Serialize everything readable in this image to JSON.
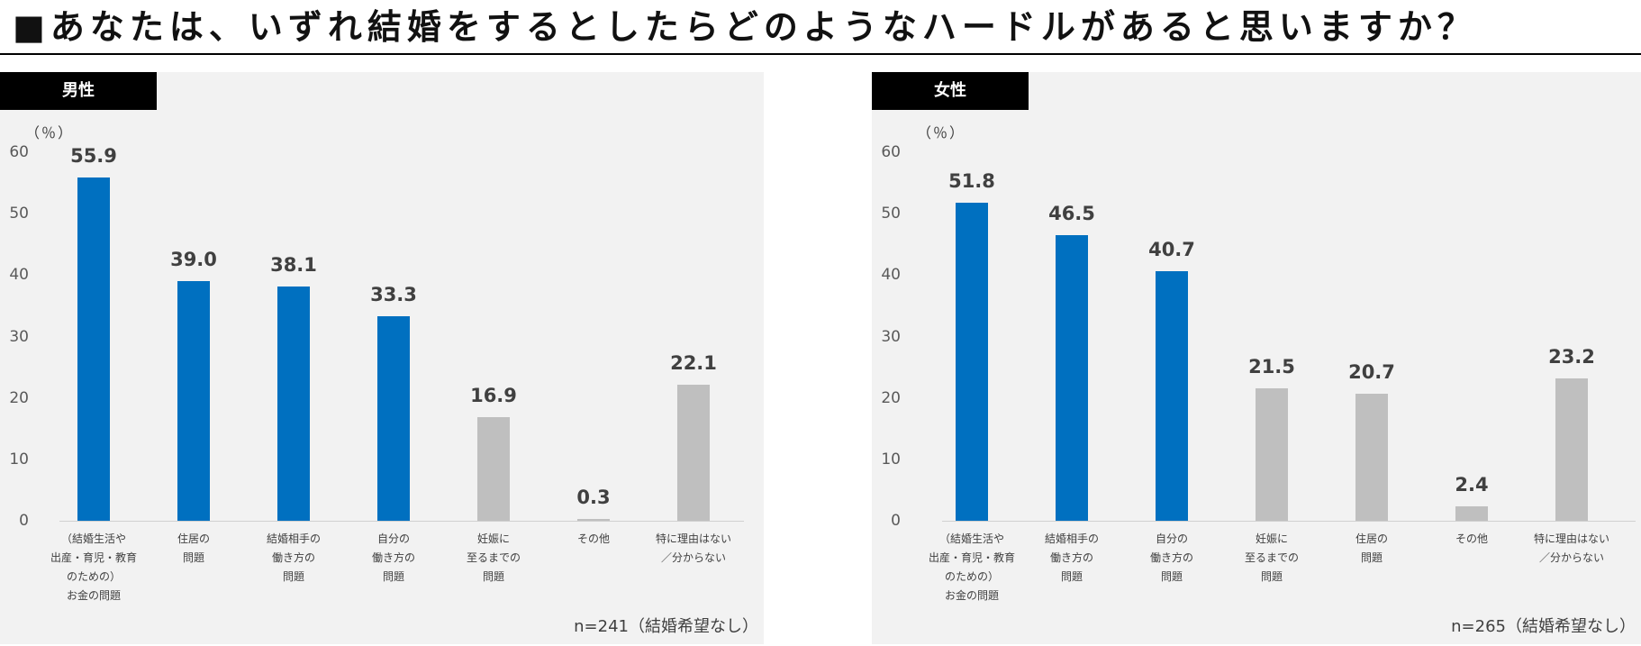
{
  "page_title": "■あなたは、いずれ結婚をするとしたらどのようなハードルがあると思いますか？",
  "colors": {
    "highlight": "#0070c0",
    "other": "#bfbfbf",
    "tab": "#000000",
    "panel_bg": "#f2f2f2"
  },
  "chart_data": [
    {
      "type": "bar",
      "title": "男性",
      "ylabel": "（％）",
      "ylim": [
        0,
        60
      ],
      "yticks": [
        0,
        10,
        20,
        30,
        40,
        50,
        60
      ],
      "categories": [
        "（結婚生活や\n出産・育児・教育\nのための）\nお金の問題",
        "住居の\n問題",
        "結婚相手の\n働き方の\n問題",
        "自分の\n働き方の\n問題",
        "妊娠に\n至るまでの\n問題",
        "その他",
        "特に理由はない\n／分からない"
      ],
      "values": [
        55.9,
        39.0,
        38.1,
        33.3,
        16.9,
        0.3,
        22.1
      ],
      "value_labels": [
        "55.9",
        "39.0",
        "38.1",
        "33.3",
        "16.9",
        "0.3",
        "22.1"
      ],
      "highlight": [
        true,
        true,
        true,
        true,
        false,
        false,
        false
      ],
      "note": "n=241（結婚希望なし）"
    },
    {
      "type": "bar",
      "title": "女性",
      "ylabel": "（％）",
      "ylim": [
        0,
        60
      ],
      "yticks": [
        0,
        10,
        20,
        30,
        40,
        50,
        60
      ],
      "categories": [
        "（結婚生活や\n出産・育児・教育\nのための）\nお金の問題",
        "結婚相手の\n働き方の\n問題",
        "自分の\n働き方の\n問題",
        "妊娠に\n至るまでの\n問題",
        "住居の\n問題",
        "その他",
        "特に理由はない\n／分からない"
      ],
      "values": [
        51.8,
        46.5,
        40.7,
        21.5,
        20.7,
        2.4,
        23.2
      ],
      "value_labels": [
        "51.8",
        "46.5",
        "40.7",
        "21.5",
        "20.7",
        "2.4",
        "23.2"
      ],
      "highlight": [
        true,
        true,
        true,
        false,
        false,
        false,
        false
      ],
      "note": "n=265（結婚希望なし）"
    }
  ]
}
